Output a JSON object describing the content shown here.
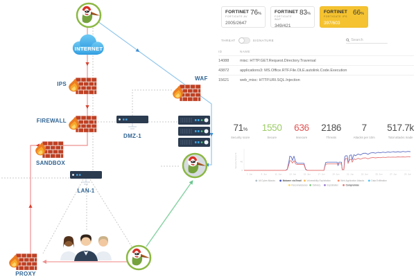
{
  "cards": [
    {
      "brand": "FORTINET",
      "subtitle": "FORTIGATE AV",
      "percent": "76",
      "ratio": "2005/2647",
      "highlight": false
    },
    {
      "brand": "FORTINET",
      "subtitle": "FORTIGATE WAF",
      "percent": "83",
      "ratio": "349/421",
      "highlight": false
    },
    {
      "brand": "FORTINET",
      "subtitle": "FORTIGATE IPS",
      "percent": "66",
      "ratio": "397/603",
      "highlight": true
    }
  ],
  "filter": {
    "threat_label": "THREAT",
    "signature_label": "SIGNATURE",
    "search_placeholder": "Search"
  },
  "table": {
    "columns": [
      "ID",
      "NAME"
    ],
    "rows": [
      {
        "id": "14088",
        "name": "misc: HTTP.GET.Request.Directory.Traversal"
      },
      {
        "id": "43872",
        "name": "applications3: MS.Office.RTF.File.OLE.autolink.Code.Execution"
      },
      {
        "id": "15621",
        "name": "web_misc: HTTP.URI.SQL.Injection"
      }
    ]
  },
  "stats": [
    {
      "value": "71",
      "suffix": "%",
      "label": "Security score",
      "color": "#4d4d4d"
    },
    {
      "value": "1550",
      "suffix": "",
      "label": "Secure",
      "color": "#9ccc65"
    },
    {
      "value": "636",
      "suffix": "",
      "label": "Insecure",
      "color": "#e35555"
    },
    {
      "value": "2186",
      "suffix": "",
      "label": "Threats",
      "color": "#4d4d4d"
    },
    {
      "value": "7",
      "suffix": "",
      "label": "Attacks per 10m",
      "color": "#4d4d4d"
    },
    {
      "value": "517.7k",
      "suffix": "",
      "label": "Total attacks made",
      "color": "#4d4d4d"
    }
  ],
  "diagram": {
    "labels": {
      "internet": "INTERNET",
      "ips": "IPS",
      "firewall": "FIREWALL",
      "sandbox": "SANDBOX",
      "proxy": "PROXY",
      "dmz": "DMZ-1",
      "lan": "LAN-1",
      "waf": "WAF"
    }
  },
  "colors": {
    "highlight_card": "#f5c331",
    "secure": "#9ccc65",
    "insecure": "#e35555",
    "attack_path_red": "#ef8f8f",
    "attack_path_blue": "#93c7ec",
    "attack_path_green": "#8ad3a6"
  },
  "chart_data": {
    "type": "line",
    "title": "",
    "y_axis_label": "Security Score %",
    "ylim": [
      0,
      100
    ],
    "grid": false,
    "legend_position": "bottom",
    "y_ticks": [
      {
        "value": 40,
        "label": "40"
      },
      {
        "value": 0,
        "label": "0"
      }
    ],
    "x_ticks": [
      "7. Jun",
      "9. Jun",
      "11. Jun",
      "13. Jun",
      "15. Jun",
      "17. Jun",
      "19. Jun",
      "21. Jun",
      "23. Jun",
      "25. Jun",
      "27. Jun",
      "29. Jun"
    ],
    "series": [
      {
        "name": "Malware via Email",
        "color": "#5c6bc0",
        "points": [
          [
            0,
            0
          ],
          [
            25,
            0
          ],
          [
            26,
            6
          ],
          [
            27,
            42
          ],
          [
            27.5,
            66
          ],
          [
            28.5,
            62
          ],
          [
            29,
            46
          ],
          [
            30,
            66
          ],
          [
            31,
            40
          ],
          [
            32,
            33
          ],
          [
            36,
            33
          ],
          [
            37,
            6
          ],
          [
            38,
            0
          ],
          [
            48,
            0
          ],
          [
            49,
            36
          ],
          [
            50,
            38
          ],
          [
            56,
            38
          ],
          [
            56.5,
            22
          ],
          [
            57,
            38
          ],
          [
            58.5,
            38
          ],
          [
            59,
            4
          ],
          [
            60,
            4
          ],
          [
            60.5,
            62
          ],
          [
            61,
            68
          ],
          [
            62,
            68
          ],
          [
            62.5,
            40
          ],
          [
            63,
            42
          ],
          [
            63.5,
            70
          ],
          [
            64.5,
            72
          ],
          [
            65,
            50
          ],
          [
            66,
            73
          ],
          [
            67,
            68
          ],
          [
            68.5,
            76
          ],
          [
            70,
            72
          ],
          [
            71.5,
            79
          ],
          [
            73,
            80
          ],
          [
            74.5,
            75
          ],
          [
            76,
            81
          ],
          [
            77.5,
            83
          ],
          [
            79,
            80
          ],
          [
            80.5,
            84
          ],
          [
            82,
            82
          ],
          [
            83.5,
            85
          ],
          [
            85,
            83
          ],
          [
            86.5,
            86
          ],
          [
            88,
            84
          ],
          [
            89.5,
            87
          ],
          [
            91,
            85
          ],
          [
            92.5,
            87
          ],
          [
            94,
            85
          ],
          [
            95.5,
            88
          ],
          [
            97,
            86
          ],
          [
            98.5,
            88
          ],
          [
            100,
            87
          ]
        ]
      },
      {
        "name": "Compromise",
        "color": "#e57373",
        "points": [
          [
            0,
            0
          ],
          [
            25,
            0
          ],
          [
            26,
            4
          ],
          [
            27,
            28
          ],
          [
            27.5,
            45
          ],
          [
            28.5,
            43
          ],
          [
            29,
            34
          ],
          [
            30,
            45
          ],
          [
            31,
            30
          ],
          [
            32,
            27
          ],
          [
            36,
            27
          ],
          [
            37,
            4
          ],
          [
            38,
            0
          ],
          [
            48,
            0
          ],
          [
            49,
            28
          ],
          [
            50,
            30
          ],
          [
            58.5,
            30
          ],
          [
            59,
            3
          ],
          [
            60,
            3
          ],
          [
            60.5,
            42
          ],
          [
            61,
            55
          ],
          [
            62,
            55
          ],
          [
            62.5,
            32
          ],
          [
            63.5,
            50
          ],
          [
            64.5,
            52
          ],
          [
            65,
            38
          ],
          [
            66,
            54
          ],
          [
            67,
            50
          ],
          [
            68.5,
            56
          ],
          [
            70,
            52
          ],
          [
            71.5,
            57
          ],
          [
            73,
            58
          ],
          [
            74.5,
            54
          ],
          [
            76,
            58
          ],
          [
            77.5,
            60
          ],
          [
            79,
            58
          ],
          [
            80.5,
            60
          ],
          [
            82,
            59
          ],
          [
            83.5,
            61
          ],
          [
            85,
            60
          ],
          [
            86.5,
            62
          ],
          [
            88,
            61
          ],
          [
            89.5,
            62
          ],
          [
            91,
            61
          ],
          [
            92.5,
            63
          ],
          [
            94,
            62
          ],
          [
            95.5,
            63
          ],
          [
            97,
            62
          ],
          [
            98.5,
            64
          ],
          [
            100,
            63
          ]
        ]
      }
    ],
    "legend_rows": [
      [
        {
          "label": "All Cyber Attacks",
          "color": "#b0bec5",
          "active": false
        },
        {
          "label": "Malware via Email",
          "color": "#3f51b5",
          "active": true
        },
        {
          "label": "Vulnerability Exploitation",
          "color": "#ffb74d",
          "active": false
        },
        {
          "label": "Web Application Attacks",
          "color": "#ff8a65",
          "active": false
        },
        {
          "label": "Data Exfiltration",
          "color": "#4fc3f7",
          "active": false
        }
      ],
      [
        {
          "label": "Reconnaissance",
          "color": "#ffd54f",
          "active": false
        },
        {
          "label": "Delivery",
          "color": "#81c784",
          "active": false
        },
        {
          "label": "Exploitation",
          "color": "#9575cd",
          "active": false
        },
        {
          "label": "Compromise",
          "color": "#e57373",
          "active": true
        }
      ]
    ]
  }
}
